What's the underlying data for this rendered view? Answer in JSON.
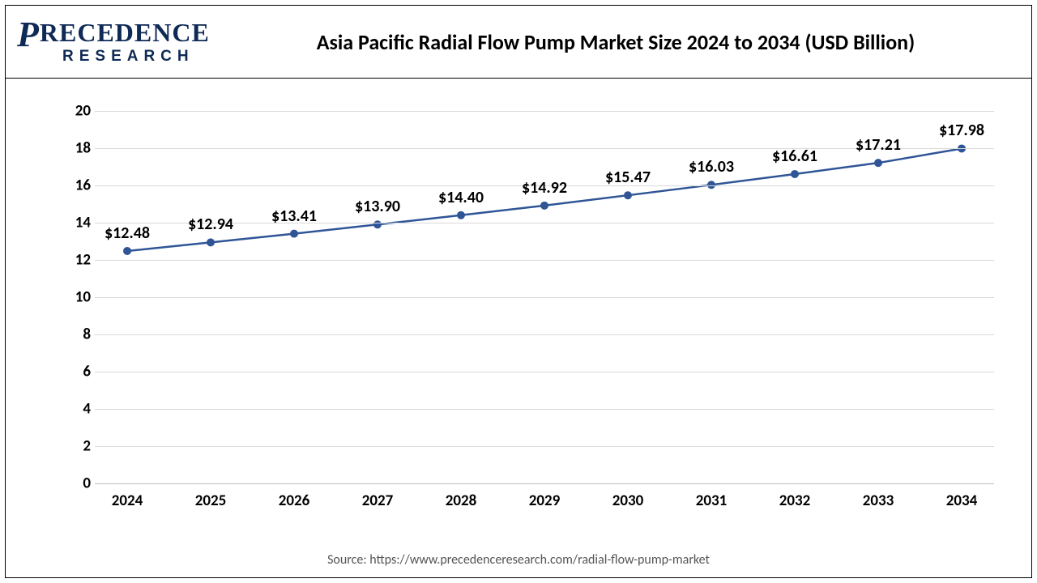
{
  "logo": {
    "top_text": "RECEDENCE",
    "big_letter": "P",
    "bottom_text": "RESEARCH"
  },
  "header": {
    "title": "Asia Pacific Radial Flow Pump Market Size 2024 to 2034 (USD Billion)"
  },
  "chart": {
    "type": "line",
    "ylim": [
      0,
      20
    ],
    "ytick_step": 2,
    "yticks": [
      0,
      2,
      4,
      6,
      8,
      10,
      12,
      14,
      16,
      18,
      20
    ],
    "categories": [
      "2024",
      "2025",
      "2026",
      "2027",
      "2028",
      "2029",
      "2030",
      "2031",
      "2032",
      "2033",
      "2034"
    ],
    "values": [
      12.48,
      12.94,
      13.41,
      13.9,
      14.4,
      14.92,
      15.47,
      16.03,
      16.61,
      17.21,
      17.98
    ],
    "data_labels": [
      "$12.48",
      "$12.94",
      "$13.41",
      "$13.90",
      "$14.40",
      "$14.92",
      "$15.47",
      "$16.03",
      "$16.61",
      "$17.21",
      "$17.98"
    ],
    "line_color": "#2f5597",
    "line_width": 2.5,
    "marker_color": "#2f5597",
    "marker_radius": 5,
    "grid_color": "#d9d9d9",
    "axis_color": "#bfbfbf",
    "background_color": "#ffffff",
    "title_fontsize": 26,
    "label_fontsize": 19,
    "datalabel_fontsize": 20
  },
  "source": {
    "text": "Source: https://www.precedenceresearch.com/radial-flow-pump-market"
  }
}
